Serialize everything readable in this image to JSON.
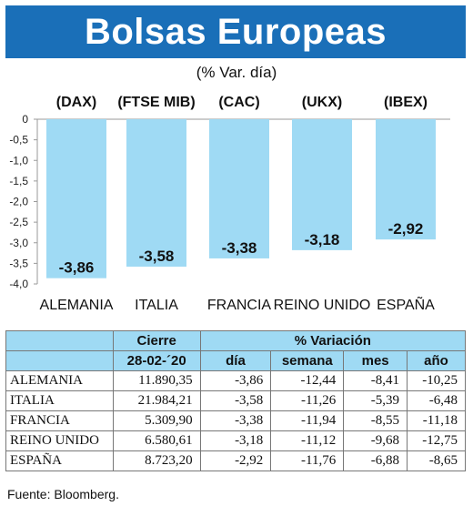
{
  "title": "Bolsas Europeas",
  "subtitle": "(% Var. día)",
  "chart_data": {
    "type": "bar",
    "categories": [
      "ALEMANIA",
      "ITALIA",
      "FRANCIA",
      "REINO UNIDO",
      "ESPAÑA"
    ],
    "indices": [
      "(DAX)",
      "(FTSE MIB)",
      "(CAC)",
      "(UKX)",
      "(IBEX)"
    ],
    "values": [
      -3.86,
      -3.58,
      -3.38,
      -3.18,
      -2.92
    ],
    "value_labels": [
      "-3,86",
      "-3,58",
      "-3,38",
      "-3,18",
      "-2,92"
    ],
    "yticks": [
      "0",
      "-0,5",
      "-1,0",
      "-1,5",
      "-2,0",
      "-2,5",
      "-3,0",
      "-3,5",
      "-4,0"
    ],
    "ylim": [
      -4.0,
      0
    ],
    "bar_color": "#9fdaf4",
    "grid": false
  },
  "table": {
    "header_groups": [
      "Cierre",
      "% Variación"
    ],
    "columns": [
      "28-02-´20",
      "día",
      "semana",
      "mes",
      "año"
    ],
    "rows": [
      {
        "country": "ALEMANIA",
        "cierre": "11.890,35",
        "dia": "-3,86",
        "semana": "-12,44",
        "mes": "-8,41",
        "ano": "-10,25"
      },
      {
        "country": "ITALIA",
        "cierre": "21.984,21",
        "dia": "-3,58",
        "semana": "-11,26",
        "mes": "-5,39",
        "ano": "-6,48"
      },
      {
        "country": "FRANCIA",
        "cierre": "5.309,90",
        "dia": "-3,38",
        "semana": "-11,94",
        "mes": "-8,55",
        "ano": "-11,18"
      },
      {
        "country": "REINO UNIDO",
        "cierre": "6.580,61",
        "dia": "-3,18",
        "semana": "-11,12",
        "mes": "-9,68",
        "ano": "-12,75"
      },
      {
        "country": "ESPAÑA",
        "cierre": "8.723,20",
        "dia": "-2,92",
        "semana": "-11,76",
        "mes": "-6,88",
        "ano": "-8,65"
      }
    ]
  },
  "source": "Fuente: Bloomberg."
}
